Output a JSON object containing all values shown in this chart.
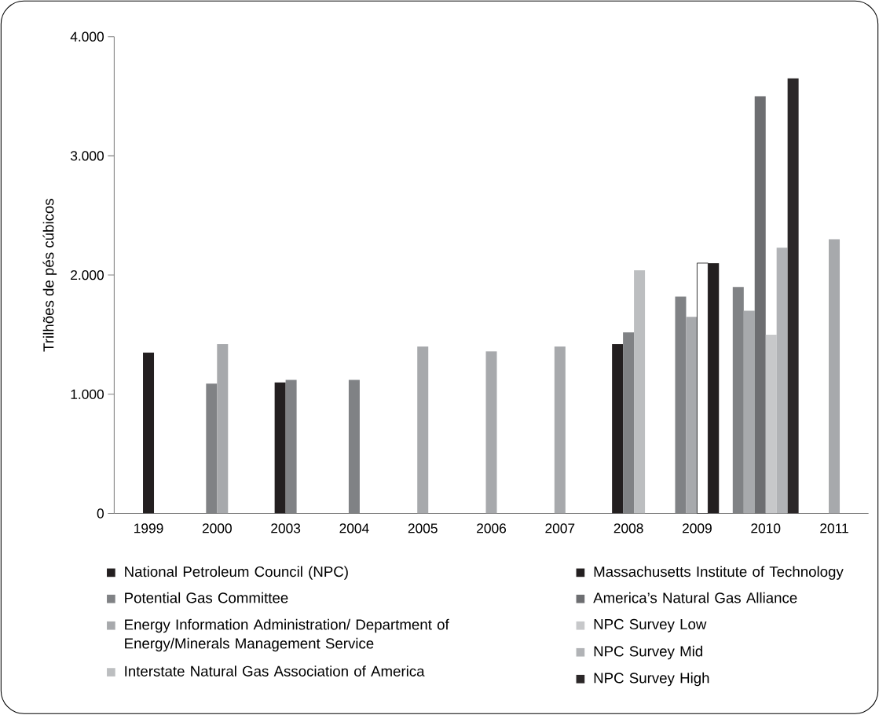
{
  "chart_data": {
    "type": "bar",
    "ylabel": "Trilhões de pés cúbicos",
    "categories": [
      "1999",
      "2000",
      "2003",
      "2004",
      "2005",
      "2006",
      "2007",
      "2008",
      "2009",
      "2010",
      "2011"
    ],
    "ylim": [
      0,
      4000
    ],
    "yticks": [
      0,
      {
        "value": 1000,
        "label": "1.000"
      },
      {
        "value": 2000,
        "label": "2.000"
      },
      {
        "value": 3000,
        "label": "3.000"
      },
      {
        "value": 4000,
        "label": "4.000"
      }
    ],
    "legend": "bottom",
    "series": [
      {
        "name": "National Petroleum Council (NPC)",
        "color": "#231f20",
        "values": [
          1350,
          null,
          1100,
          null,
          null,
          null,
          null,
          1420,
          null,
          null,
          null
        ]
      },
      {
        "name": "Potential Gas Committee",
        "color": "#808285",
        "values": [
          null,
          1090,
          1120,
          1120,
          null,
          null,
          null,
          1520,
          1820,
          1900,
          null
        ]
      },
      {
        "name": "Energy Information Administration/ Department of Energy/Minerals Management Service",
        "color": "#a7a9ac",
        "values": [
          null,
          1420,
          null,
          null,
          1400,
          1360,
          1400,
          null,
          1650,
          1700,
          2300
        ]
      },
      {
        "name": "Interstate Natural Gas Association of America",
        "color": "#bcbec0",
        "values": [
          null,
          null,
          null,
          null,
          null,
          null,
          null,
          2040,
          null,
          null,
          null
        ]
      },
      {
        "color": "#ffffff",
        "values": [
          null,
          null,
          null,
          null,
          null,
          null,
          null,
          null,
          2100,
          null,
          null
        ]
      },
      {
        "name": "Massachusetts Institute of Technology",
        "color": "#231f20",
        "values": [
          null,
          null,
          null,
          null,
          null,
          null,
          null,
          null,
          2100,
          null,
          null
        ]
      },
      {
        "name": "America’s Natural Gas Alliance",
        "color": "#6d6e71",
        "values": [
          null,
          null,
          null,
          null,
          null,
          null,
          null,
          null,
          null,
          3500,
          null
        ]
      },
      {
        "name": "NPC Survey Low",
        "color": "#c7c8ca",
        "values": [
          null,
          null,
          null,
          null,
          null,
          null,
          null,
          null,
          null,
          1500,
          null
        ]
      },
      {
        "name": "NPC Survey Mid",
        "color": "#b1b3b6",
        "values": [
          null,
          null,
          null,
          null,
          null,
          null,
          null,
          null,
          null,
          2230,
          null
        ]
      },
      {
        "name": "NPC Survey High",
        "color": "#2b2728",
        "values": [
          null,
          null,
          null,
          null,
          null,
          null,
          null,
          null,
          null,
          3650,
          null
        ]
      }
    ]
  }
}
